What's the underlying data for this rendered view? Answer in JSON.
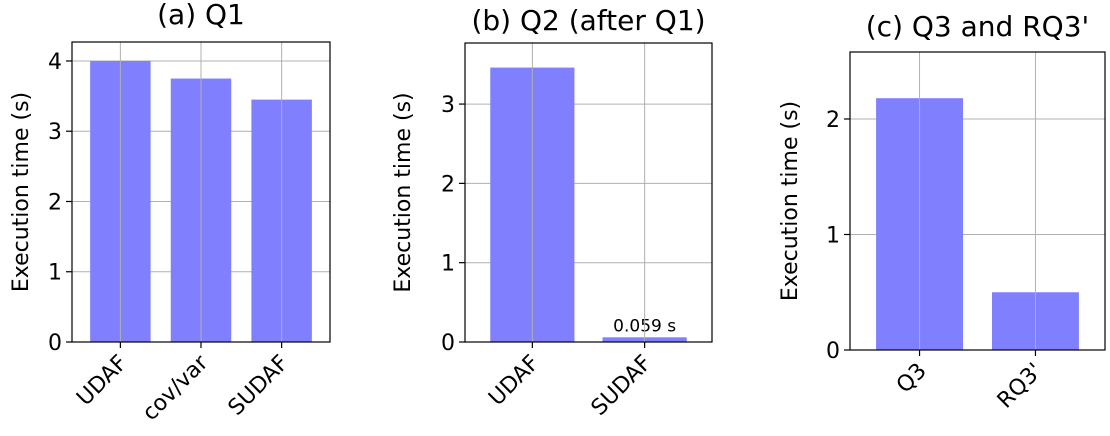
{
  "chart_data": [
    {
      "type": "bar",
      "title": "(a) Q1",
      "ylabel": "Execution time (s)",
      "categories": [
        "UDAF",
        "cov/var",
        "SUDAF"
      ],
      "values": [
        4.0,
        3.75,
        3.45
      ],
      "color": "#8080ff",
      "ylim": [
        0,
        4.27
      ],
      "yticks": [
        0,
        1,
        2,
        3,
        4
      ],
      "grid": true
    },
    {
      "type": "bar",
      "title": "(b) Q2 (after Q1)",
      "ylabel": "Execution time (s)",
      "categories": [
        "UDAF",
        "SUDAF"
      ],
      "values": [
        3.46,
        0.059
      ],
      "value_labels": [
        null,
        "0.059 s"
      ],
      "color": "#8080ff",
      "ylim": [
        0,
        3.77
      ],
      "yticks": [
        0,
        1,
        2,
        3
      ],
      "grid": true
    },
    {
      "type": "bar",
      "title": "(c) Q3 and RQ3'",
      "ylabel": "Execution time (s)",
      "categories": [
        "Q3",
        "RQ3'"
      ],
      "values": [
        2.18,
        0.5
      ],
      "color": "#8080ff",
      "ylim": [
        0,
        2.58
      ],
      "yticks": [
        0,
        1,
        2
      ],
      "grid": true
    }
  ]
}
